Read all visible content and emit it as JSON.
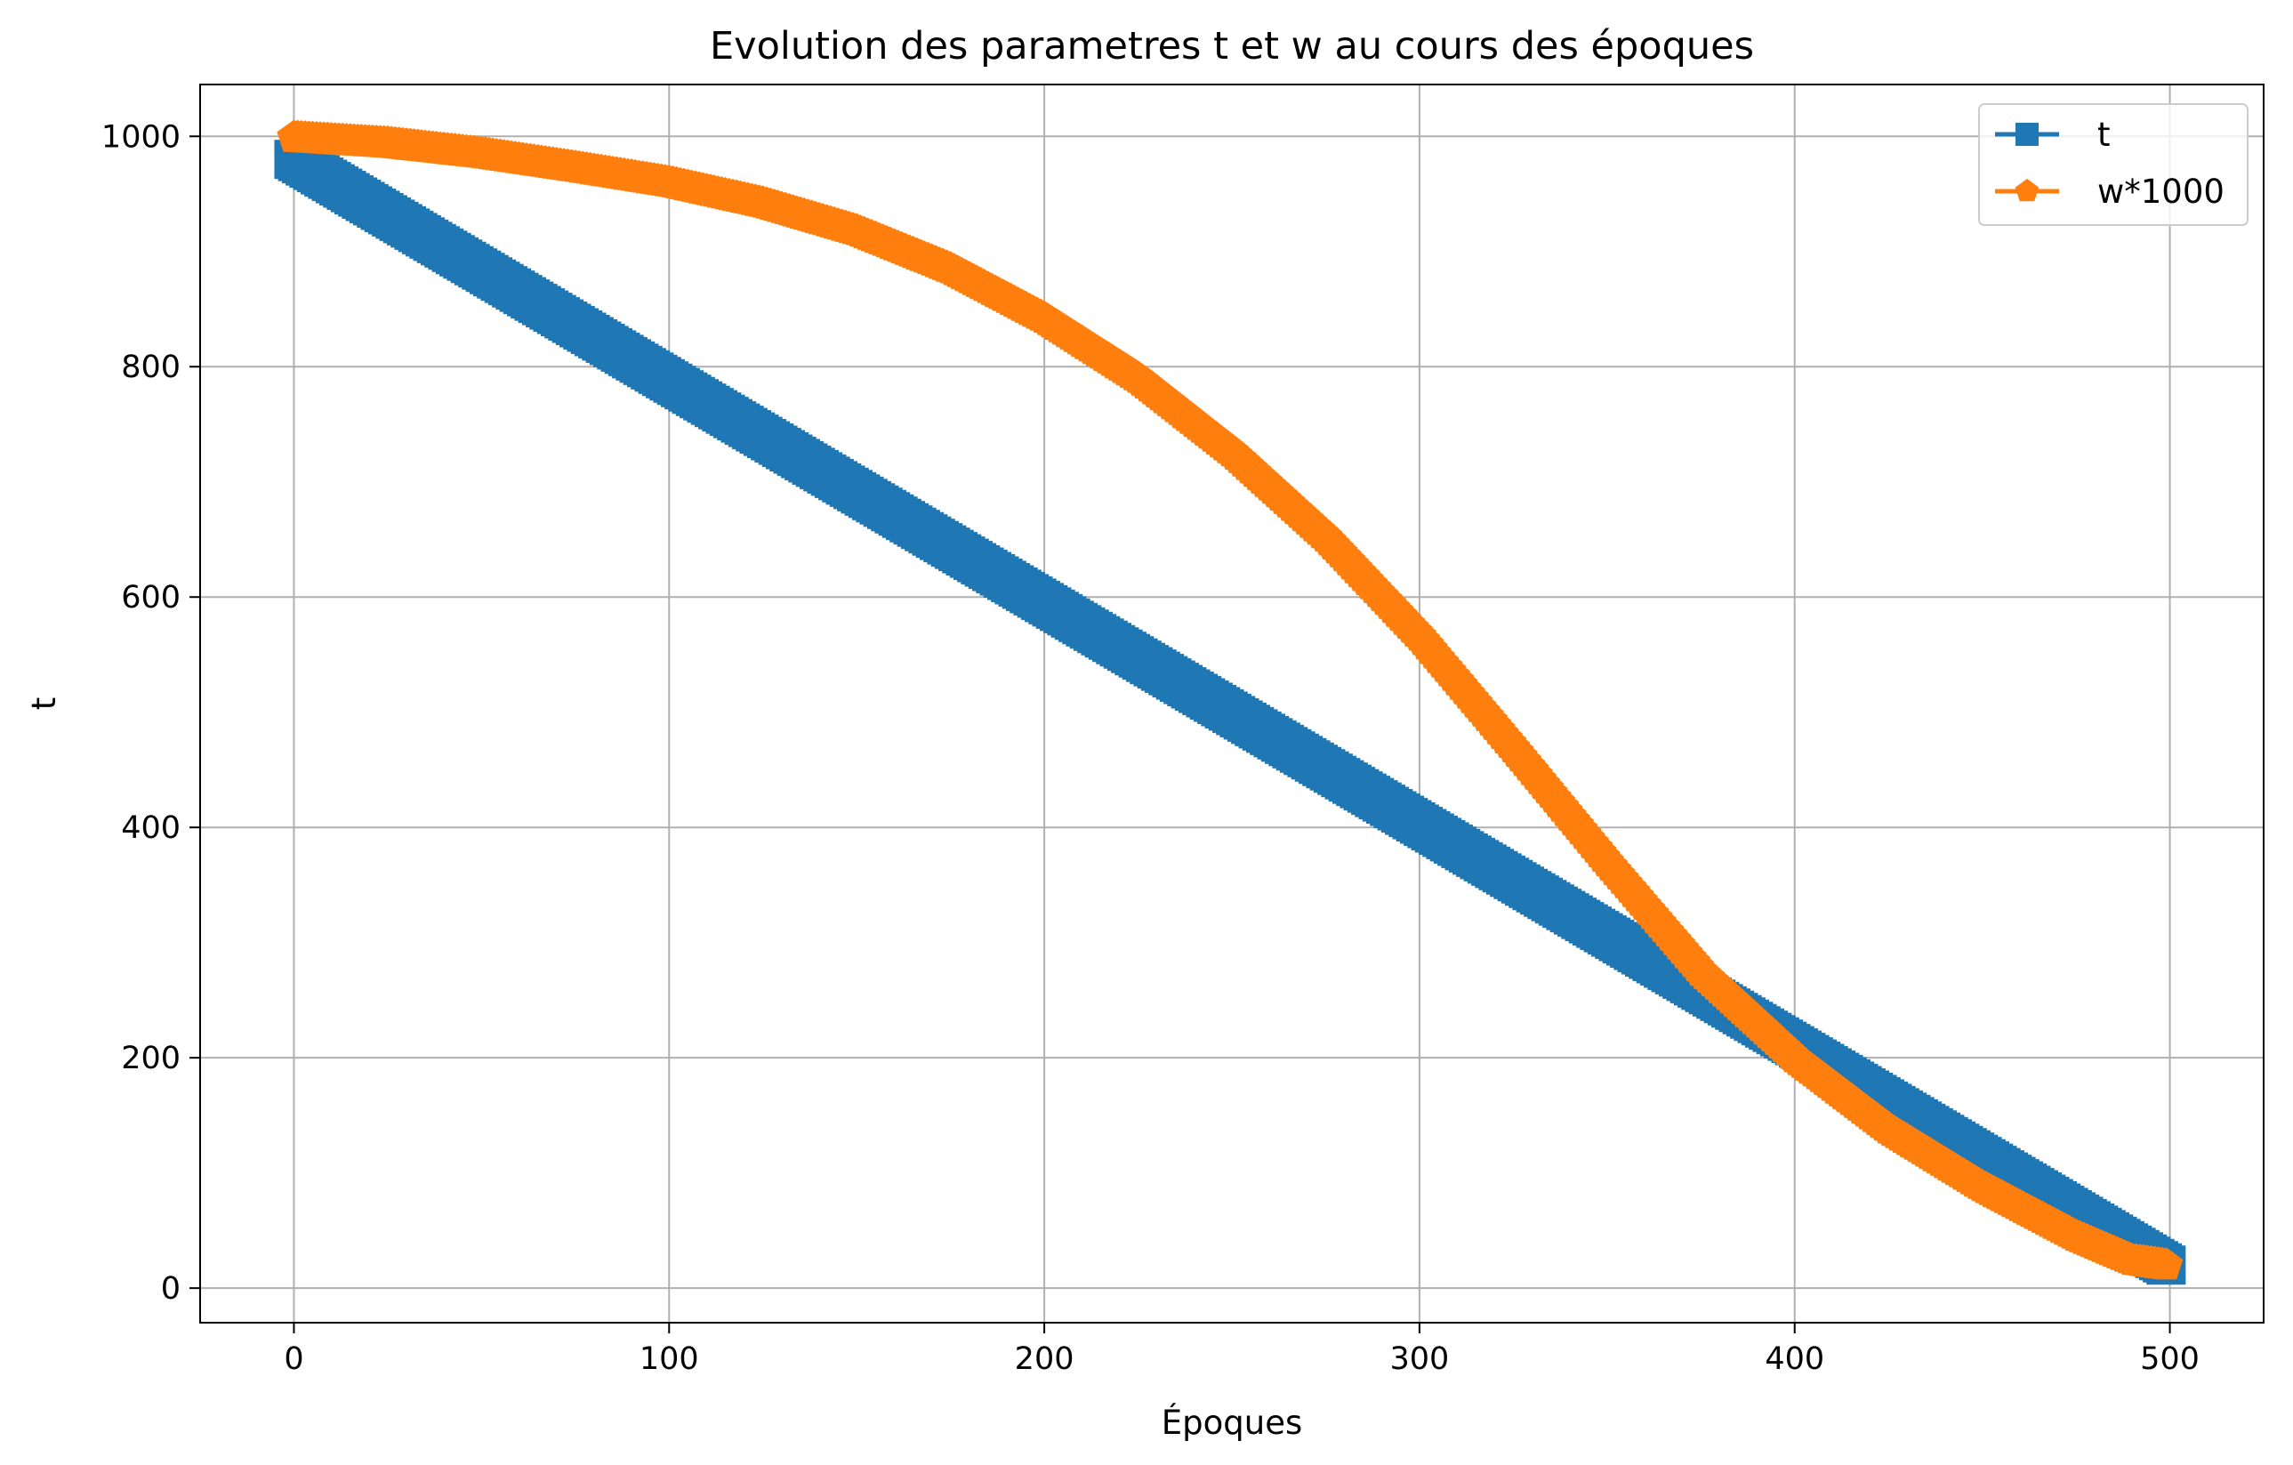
{
  "chart_data": {
    "type": "line",
    "title": "Evolution des parametres t et w au cours des époques",
    "xlabel": "Époques",
    "ylabel": "t",
    "xlim": [
      -25,
      525
    ],
    "ylim": [
      -30,
      1045
    ],
    "xticks": [
      0,
      100,
      200,
      300,
      400,
      500
    ],
    "yticks": [
      0,
      200,
      400,
      600,
      800,
      1000
    ],
    "grid": true,
    "legend_position": "top-right",
    "series": [
      {
        "name": "t",
        "color": "#1f77b4",
        "marker": "square",
        "x_range": [
          0,
          499
        ],
        "points": [
          [
            0,
            980
          ],
          [
            499,
            20
          ]
        ]
      },
      {
        "name": "w*1000",
        "color": "#ff7f0e",
        "marker": "pentagon",
        "x_range": [
          0,
          499
        ],
        "points": [
          [
            0,
            999
          ],
          [
            25,
            994
          ],
          [
            50,
            985
          ],
          [
            75,
            973
          ],
          [
            100,
            960
          ],
          [
            125,
            942
          ],
          [
            150,
            918
          ],
          [
            175,
            885
          ],
          [
            200,
            842
          ],
          [
            225,
            790
          ],
          [
            250,
            726
          ],
          [
            275,
            652
          ],
          [
            300,
            566
          ],
          [
            325,
            469
          ],
          [
            350,
            370
          ],
          [
            375,
            275
          ],
          [
            400,
            200
          ],
          [
            425,
            138
          ],
          [
            450,
            88
          ],
          [
            475,
            45
          ],
          [
            490,
            24
          ],
          [
            499,
            20
          ]
        ]
      }
    ]
  }
}
